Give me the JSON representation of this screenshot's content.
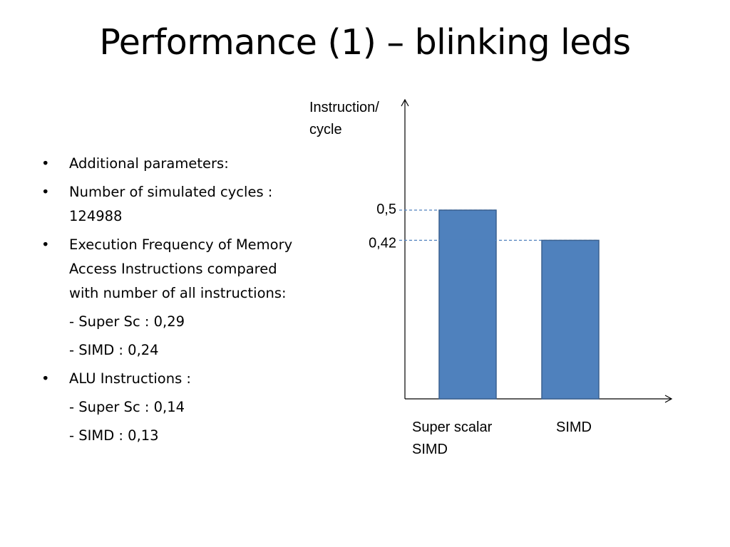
{
  "slide": {
    "title": "Performance (1) – blinking leds"
  },
  "bullets": [
    {
      "type": "bullet",
      "text": "Additional parameters:"
    },
    {
      "type": "bullet",
      "text": "Number of simulated cycles : 124988"
    },
    {
      "type": "bullet",
      "text": "Execution Frequency of Memory Access Instructions compared with number of all instructions:"
    },
    {
      "type": "sub",
      "text": "- Super Sc : 0,29"
    },
    {
      "type": "sub",
      "text": "- SIMD : 0,24"
    },
    {
      "type": "bullet",
      "text": "ALU Instructions :"
    },
    {
      "type": "sub",
      "text": "- Super Sc : 0,14"
    },
    {
      "type": "sub",
      "text": "- SIMD : 0,13"
    }
  ],
  "chart_data": {
    "type": "bar",
    "ylabel_lines": [
      "Instruction/",
      "cycle"
    ],
    "categories": [
      {
        "lines": [
          "Super scalar",
          "SIMD"
        ]
      },
      {
        "lines": [
          "SIMD"
        ]
      }
    ],
    "values": [
      0.5,
      0.42
    ],
    "value_labels": [
      "0,5",
      "0,42"
    ],
    "ylim": [
      0,
      0.5
    ],
    "bar_color": "#4f81bd",
    "bar_border_color": "#3a6190",
    "guide_line_color": "#4f81bd",
    "axis_color": "#000000",
    "grid": false,
    "legend": "none"
  }
}
